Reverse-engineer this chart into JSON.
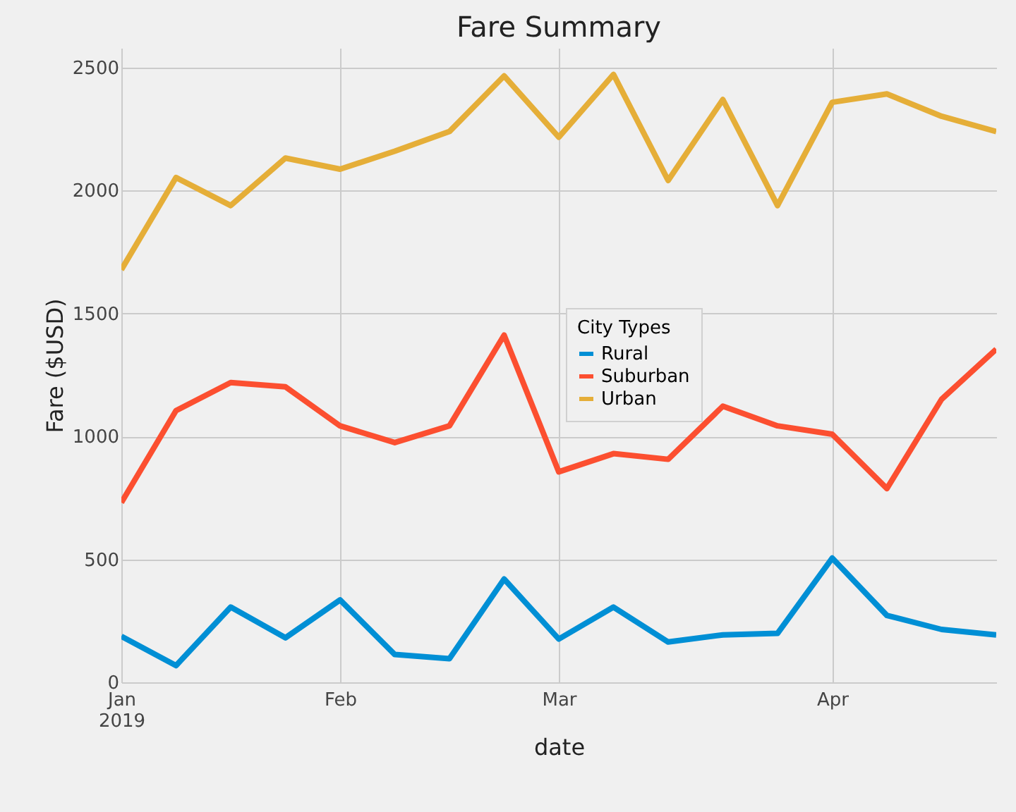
{
  "chart_data": {
    "type": "line",
    "title": "Fare Summary",
    "xlabel": "date",
    "ylabel": "Fare ($USD)",
    "legend_title": "City Types",
    "x": [
      "2019-01-06",
      "2019-01-13",
      "2019-01-20",
      "2019-01-27",
      "2019-02-03",
      "2019-02-10",
      "2019-02-17",
      "2019-02-24",
      "2019-03-03",
      "2019-03-10",
      "2019-03-17",
      "2019-03-24",
      "2019-03-31",
      "2019-04-07",
      "2019-04-14",
      "2019-04-21",
      "2019-04-28"
    ],
    "series": [
      {
        "name": "Rural",
        "color": "#008fd5",
        "values": [
          187,
          68,
          306,
          181,
          335,
          113,
          96,
          420,
          176,
          306,
          164,
          193,
          199,
          505,
          272,
          215,
          193
        ]
      },
      {
        "name": "Suburban",
        "color": "#fc4f30",
        "values": [
          731,
          1105,
          1219,
          1202,
          1043,
          975,
          1043,
          1412,
          856,
          930,
          907,
          1123,
          1043,
          1009,
          788,
          1151,
          1355
        ]
      },
      {
        "name": "Urban",
        "color": "#e5ae38",
        "values": [
          1678,
          2053,
          1939,
          2132,
          2087,
          2160,
          2240,
          2466,
          2217,
          2472,
          2041,
          2370,
          1939,
          2359,
          2393,
          2302,
          2240
        ]
      }
    ],
    "xlim": [
      "2019-01-06",
      "2019-04-28"
    ],
    "xticks": [
      {
        "value": "2019-01-06",
        "label": "Jan\n2019"
      },
      {
        "value": "2019-02-03",
        "label": "Feb"
      },
      {
        "value": "2019-03-03",
        "label": "Mar"
      },
      {
        "value": "2019-04-07",
        "label": "Apr"
      }
    ],
    "ylim": [
      0,
      2580
    ],
    "yticks": [
      0,
      500,
      1000,
      1500,
      2000,
      2500
    ],
    "grid": true,
    "legend": "center",
    "marker": "none",
    "line_style": "solid"
  }
}
